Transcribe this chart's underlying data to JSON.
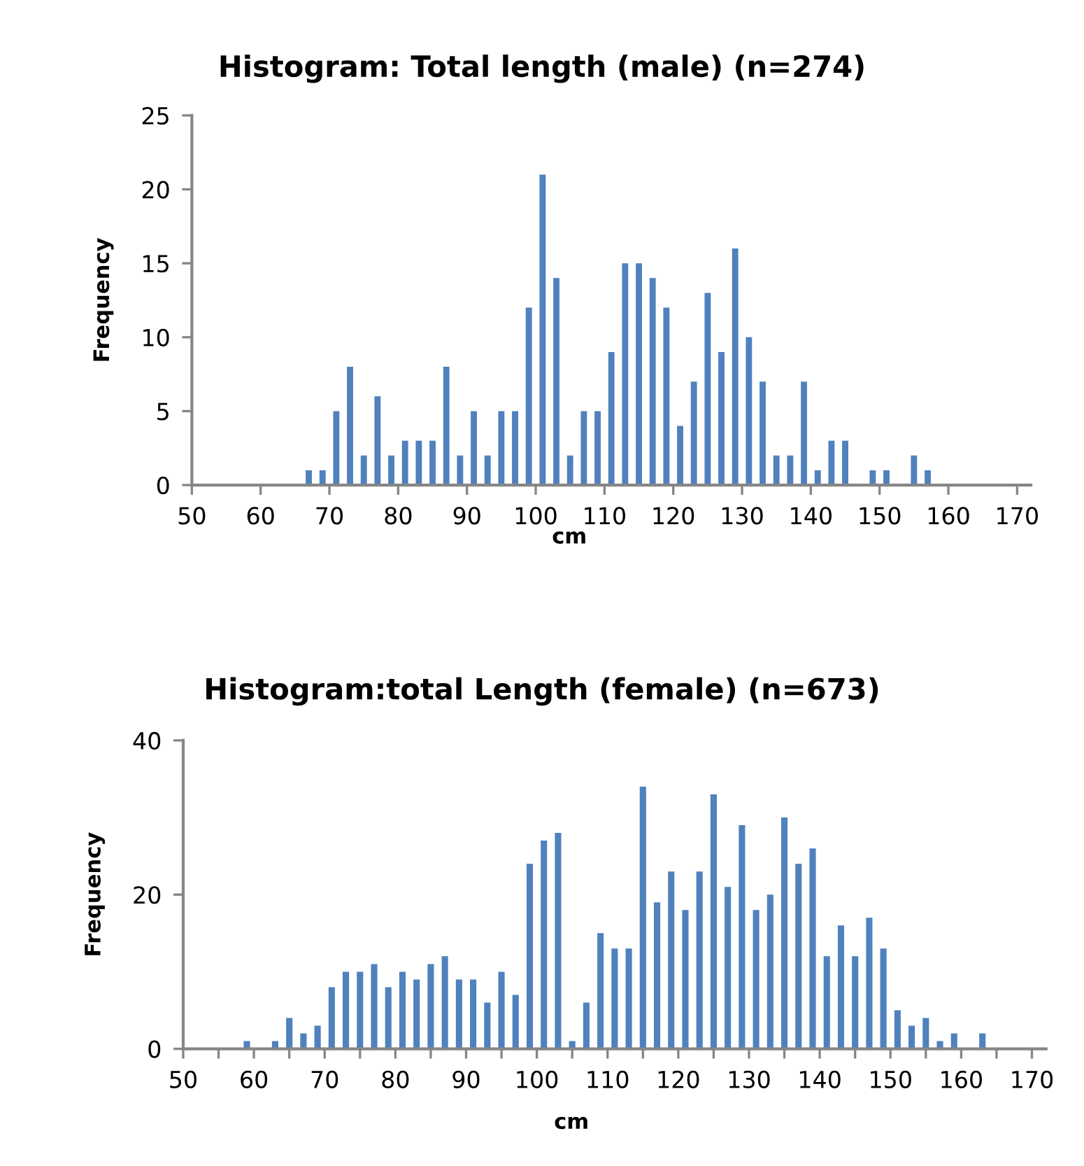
{
  "chart_data": [
    {
      "type": "histogram",
      "title": "Histogram: Total length (male) (n=274)",
      "xlabel": "cm",
      "ylabel": "Frequency",
      "color": "#4f81bd",
      "bins": [
        66,
        68,
        70,
        72,
        74,
        76,
        78,
        80,
        82,
        84,
        86,
        88,
        90,
        92,
        94,
        96,
        98,
        100,
        102,
        104,
        106,
        108,
        110,
        112,
        114,
        116,
        118,
        120,
        122,
        124,
        126,
        128,
        130,
        132,
        134,
        136,
        138,
        140,
        142,
        144,
        146,
        148,
        150,
        152,
        154,
        156,
        158
      ],
      "values": [
        1,
        1,
        5,
        8,
        2,
        6,
        2,
        3,
        3,
        3,
        8,
        2,
        5,
        2,
        5,
        5,
        12,
        21,
        14,
        2,
        5,
        5,
        9,
        15,
        15,
        14,
        12,
        4,
        7,
        13,
        9,
        16,
        10,
        7,
        2,
        2,
        7,
        1,
        3,
        3,
        0,
        1,
        1,
        0,
        2,
        1
      ],
      "xlim": [
        50,
        172
      ],
      "xticks": [
        50,
        60,
        70,
        80,
        90,
        100,
        110,
        120,
        130,
        140,
        150,
        160,
        170
      ],
      "ylim": [
        0,
        25
      ],
      "yticks": [
        0,
        5,
        10,
        15,
        20,
        25
      ],
      "grid": false,
      "legend": false
    },
    {
      "type": "histogram",
      "title": "Histogram:total Length (female) (n=673)",
      "xlabel": "cm",
      "ylabel": "Frequency",
      "color": "#4f81bd",
      "bins": [
        58,
        60,
        62,
        64,
        66,
        68,
        70,
        72,
        74,
        76,
        78,
        80,
        82,
        84,
        86,
        88,
        90,
        92,
        94,
        96,
        98,
        100,
        102,
        104,
        106,
        108,
        110,
        112,
        114,
        116,
        118,
        120,
        122,
        124,
        126,
        128,
        130,
        132,
        134,
        136,
        138,
        140,
        142,
        144,
        146,
        148,
        150,
        152,
        154,
        156,
        158,
        160,
        162,
        164
      ],
      "values": [
        1,
        0,
        1,
        4,
        2,
        3,
        8,
        10,
        10,
        11,
        8,
        10,
        9,
        11,
        12,
        9,
        9,
        6,
        10,
        7,
        24,
        27,
        28,
        1,
        6,
        15,
        13,
        13,
        34,
        19,
        23,
        18,
        23,
        33,
        21,
        29,
        18,
        20,
        30,
        24,
        26,
        12,
        16,
        12,
        17,
        13,
        5,
        3,
        4,
        1,
        2,
        0,
        2
      ],
      "xlim": [
        50,
        172
      ],
      "xticks": [
        50,
        {
          "value": 55,
          "label": null
        },
        60,
        {
          "value": 65,
          "label": null
        },
        70,
        {
          "value": 75,
          "label": null
        },
        80,
        {
          "value": 85,
          "label": null
        },
        90,
        {
          "value": 95,
          "label": null
        },
        100,
        {
          "value": 105,
          "label": null
        },
        110,
        {
          "value": 115,
          "label": null
        },
        120,
        {
          "value": 125,
          "label": null
        },
        130,
        {
          "value": 135,
          "label": null
        },
        140,
        {
          "value": 145,
          "label": null
        },
        150,
        {
          "value": 155,
          "label": null
        },
        160,
        {
          "value": 165,
          "label": null
        },
        170
      ],
      "ylim": [
        0,
        40
      ],
      "yticks": [
        0,
        20,
        40
      ],
      "grid": false,
      "legend": false
    }
  ]
}
